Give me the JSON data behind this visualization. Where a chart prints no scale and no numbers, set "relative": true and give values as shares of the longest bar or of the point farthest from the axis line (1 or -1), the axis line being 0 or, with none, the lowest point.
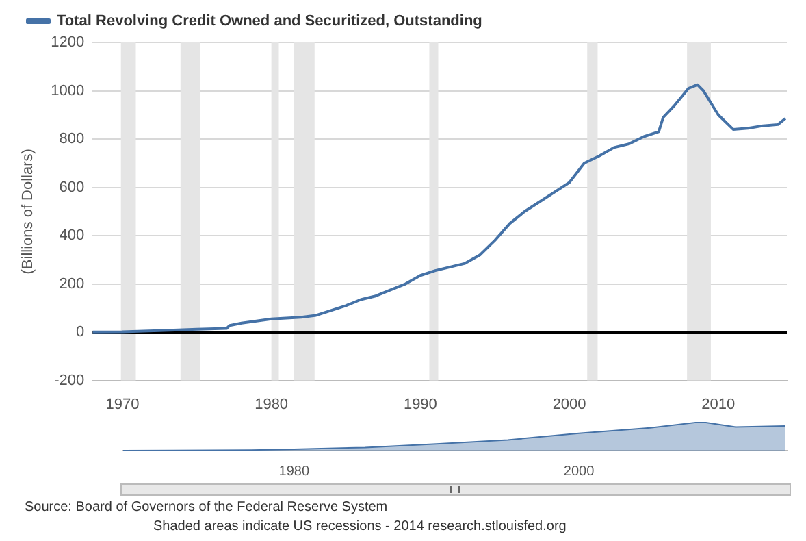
{
  "chart_data": [
    {
      "type": "line",
      "ylabel": "(Billions of Dollars)",
      "legend": "top",
      "grid": "y",
      "line_style": "solid",
      "marker": "none",
      "series": [
        {
          "name": "Total Revolving Credit Owned and Securitized, Outstanding",
          "color": "#4572a7",
          "x": [
            1968,
            1970,
            1975,
            1977,
            1977.2,
            1978,
            1980,
            1982,
            1983,
            1985,
            1986,
            1987,
            1988,
            1989,
            1990,
            1991,
            1992,
            1993,
            1994,
            1995,
            1996,
            1997,
            1998,
            1999,
            2000,
            2001,
            2001.5,
            2002,
            2003,
            2004,
            2005,
            2006,
            2006.3,
            2007,
            2008,
            2008.6,
            2009,
            2010,
            2011,
            2012,
            2013,
            2014,
            2014.5
          ],
          "values": [
            1,
            2,
            12,
            16,
            28,
            38,
            55,
            62,
            70,
            110,
            135,
            150,
            175,
            200,
            235,
            255,
            270,
            285,
            320,
            380,
            450,
            500,
            540,
            580,
            620,
            700,
            715,
            730,
            765,
            780,
            810,
            830,
            890,
            935,
            1010,
            1025,
            1000,
            900,
            840,
            845,
            855,
            860,
            885
          ]
        }
      ],
      "xlim": [
        1968,
        2014.6
      ],
      "xticks": [
        1970,
        1980,
        1990,
        2000,
        2010
      ],
      "ylim": [
        -200,
        1200
      ],
      "yticks": [
        -200,
        0,
        200,
        400,
        600,
        800,
        1000,
        1200
      ],
      "ref_lines": [
        {
          "axis": "y",
          "value": 0,
          "color": "#000000"
        }
      ],
      "bands": [
        {
          "axis": "x",
          "from": 1969.9,
          "to": 1970.9,
          "color": "#e5e5e5"
        },
        {
          "axis": "x",
          "from": 1973.9,
          "to": 1975.2,
          "color": "#e5e5e5"
        },
        {
          "axis": "x",
          "from": 1980,
          "to": 1980.5,
          "color": "#e5e5e5"
        },
        {
          "axis": "x",
          "from": 1981.5,
          "to": 1982.9,
          "color": "#e5e5e5"
        },
        {
          "axis": "x",
          "from": 1990.6,
          "to": 1991.2,
          "color": "#e5e5e5"
        },
        {
          "axis": "x",
          "from": 2001.2,
          "to": 2001.9,
          "color": "#e5e5e5"
        },
        {
          "axis": "x",
          "from": 2007.9,
          "to": 2009.5,
          "color": "#e5e5e5"
        }
      ],
      "annotations": [
        "Source: Board of Governors of the Federal Reserve System",
        "Shaded areas indicate US recessions - 2014 research.stlouisfed.org"
      ]
    },
    {
      "type": "area",
      "relative": true,
      "tick_labels": "x",
      "grid": false,
      "series": [
        {
          "color": "#4572a7",
          "x": [
            1968,
            1977,
            1980,
            1985,
            1990,
            1995,
            2000,
            2005,
            2008.6,
            2011,
            2014.5
          ],
          "values": [
            0,
            0.02,
            0.05,
            0.11,
            0.23,
            0.37,
            0.6,
            0.79,
            1,
            0.82,
            0.86
          ]
        }
      ],
      "xlim": [
        1968,
        2014.6
      ],
      "xticks": [
        1980,
        2000
      ]
    }
  ]
}
